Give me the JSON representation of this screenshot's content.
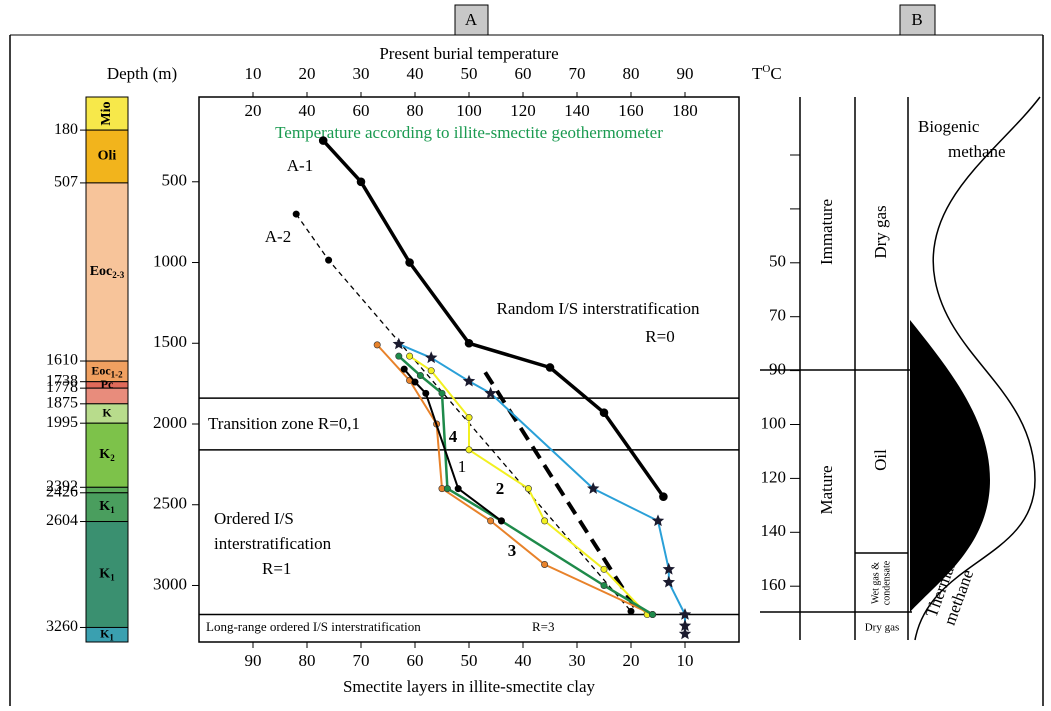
{
  "chart_data": {
    "type": "line",
    "panel_label": "A",
    "title": "Present burial temperature",
    "top_axis": {
      "xlim": [
        0,
        100
      ],
      "xticks": [
        10,
        20,
        30,
        40,
        50,
        60,
        70,
        80,
        90
      ]
    },
    "temp_unit": {
      "main": "T",
      "sup": "O",
      "tail": "C"
    },
    "geo_axis": {
      "title": "Temperature according to illite-smectite geothermometer",
      "color": "#1a9a50",
      "xlim": [
        0,
        200
      ],
      "xticks": [
        20,
        40,
        60,
        80,
        100,
        120,
        140,
        160,
        180
      ]
    },
    "xlabel": "Smectite layers in illite-smectite clay",
    "ylabel": "Depth (m)",
    "xlim": [
      100,
      0
    ],
    "xticks": [
      90,
      80,
      70,
      60,
      50,
      40,
      30,
      20,
      10
    ],
    "ylim": [
      -25,
      3350
    ],
    "yticks": [
      500,
      1000,
      1500,
      2000,
      2500,
      3000
    ],
    "zone_boundaries": [
      1840,
      2160,
      3180
    ],
    "annotations": [
      "Random I/S interstratification",
      "R=0",
      "Transition zone  R=0,1",
      "Ordered I/S",
      "interstratification",
      "R=1",
      "Long-range ordered I/S interstratification",
      "R=3"
    ],
    "series": [
      {
        "name": "A-1",
        "color": "#000000",
        "width": 3.5,
        "marker": "circle",
        "x": [
          77,
          70,
          61,
          50,
          35,
          25,
          14
        ],
        "values": [
          245,
          500,
          1000,
          1500,
          1650,
          1930,
          2450
        ]
      },
      {
        "name": "A-2",
        "color": "#000000",
        "width": 1.3,
        "dash": true,
        "marker": "circle",
        "x": [
          82,
          76,
          20
        ],
        "values": [
          700,
          985,
          3160
        ]
      },
      {
        "color": "#000000",
        "width": 4,
        "dash": true,
        "marker": "none",
        "x": [
          47,
          19
        ],
        "values": [
          1680,
          3150
        ]
      },
      {
        "color": "#2aa0d8",
        "width": 2,
        "marker": "star",
        "x": [
          63,
          57,
          50,
          46,
          27,
          15,
          13,
          13,
          10,
          10,
          10
        ],
        "values": [
          1505,
          1590,
          1735,
          1810,
          2400,
          2600,
          2900,
          2980,
          3180,
          3250,
          3300
        ]
      },
      {
        "name": "2",
        "color": "#f2f020",
        "label_color": "#b8a838",
        "width": 2,
        "marker": "circle",
        "x": [
          61,
          57,
          50,
          50,
          39,
          36,
          25,
          17
        ],
        "values": [
          1580,
          1670,
          1960,
          2160,
          2400,
          2600,
          2900,
          3180
        ]
      },
      {
        "name": "3",
        "color": "#e8822a",
        "label_color": "#c06a28",
        "width": 2,
        "marker": "circle",
        "x": [
          67,
          61,
          56,
          55,
          46,
          36,
          16
        ],
        "values": [
          1510,
          1730,
          2000,
          2400,
          2600,
          2870,
          3180
        ]
      },
      {
        "name": "4",
        "color": "#1e8a4a",
        "label_color": "#1e7a52",
        "width": 2.5,
        "marker": "circle",
        "x": [
          63,
          59,
          55,
          54,
          44,
          25,
          16
        ],
        "values": [
          1580,
          1700,
          1810,
          2400,
          2600,
          3000,
          3180
        ]
      },
      {
        "name": "1",
        "color": "#000000",
        "width": 2,
        "marker": "circle",
        "x": [
          62,
          60,
          58,
          52,
          44
        ],
        "values": [
          1660,
          1740,
          1810,
          2400,
          2600
        ]
      }
    ]
  },
  "column": {
    "boundaries": [
      180,
      507,
      1610,
      1738,
      1778,
      1875,
      1995,
      2392,
      2426,
      2604,
      3260
    ],
    "units": [
      {
        "label": "Mio",
        "color": "#f7e84a"
      },
      {
        "label": "Oli",
        "color": "#f2b41c"
      },
      {
        "label": "Eoc",
        "sub": "2-3",
        "color": "#f7c49a"
      },
      {
        "label": "Eoc",
        "sub": "1-2",
        "color": "#f0a060"
      },
      {
        "label": "Pc",
        "color": "#e06a5a"
      },
      {
        "color": "#e88c7c"
      },
      {
        "label": "K",
        "color": "#b8dc8c"
      },
      {
        "label": "K",
        "sub": "2",
        "color": "#7dc24a"
      },
      {
        "color": "#5aaa5a"
      },
      {
        "label": "K",
        "sub": "1",
        "color": "#4a9e5e"
      },
      {
        "label": "K",
        "sub": "1",
        "color": "#3a9070"
      },
      {
        "label": "K",
        "sub": "1",
        "color": "#3aa0b0"
      }
    ]
  },
  "panel_b": {
    "label": "B",
    "axis_ticks": [
      null,
      null,
      50,
      70,
      90,
      100,
      120,
      140,
      160
    ],
    "maturity": [
      "Immature",
      "Mature"
    ],
    "products": [
      "Dry gas",
      "Oil",
      "Wet gas &",
      "condensate",
      "Dry gas"
    ],
    "methane": [
      "Biogenic",
      "methane",
      "Thermal",
      "methane"
    ]
  }
}
